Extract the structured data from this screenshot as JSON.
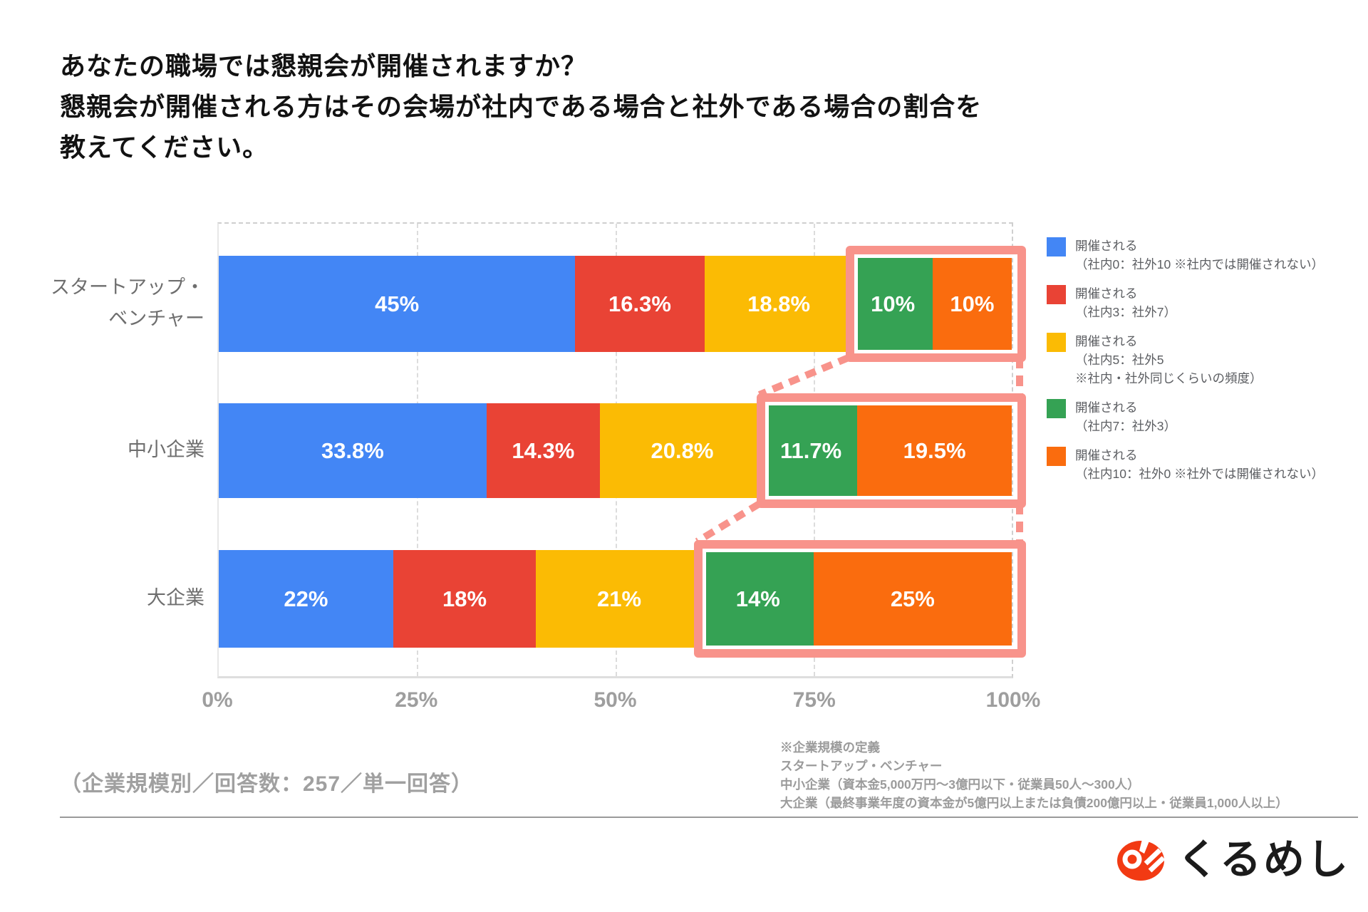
{
  "title": {
    "lines": [
      "あなたの職場では懇親会が開催されますか？",
      "懇親会が開催される方はその会場が社内である場合と社外である場合の割合を",
      "教えてください。"
    ]
  },
  "chart_data": {
    "type": "bar",
    "orientation": "horizontal_stacked",
    "categories": [
      "スタートアップ・ベンチャー",
      "中小企業",
      "大企業"
    ],
    "category_display_lines": [
      [
        "スタートアップ・",
        "ベンチャー"
      ],
      [
        "中小企業"
      ],
      [
        "大企業"
      ]
    ],
    "series": [
      {
        "name": "開催される（社内0：社外10 ※社内では開催されない）",
        "color": "#4386F5",
        "values": [
          45,
          33.8,
          22
        ],
        "labels": [
          "45%",
          "33.8%",
          "22%"
        ]
      },
      {
        "name": "開催される（社内3：社外7）",
        "color": "#E94335",
        "values": [
          16.3,
          14.3,
          18
        ],
        "labels": [
          "16.3%",
          "14.3%",
          "18%"
        ]
      },
      {
        "name": "開催される（社内5：社外5 ※社内・社外同じくらいの頻度）",
        "color": "#FBBB04",
        "values": [
          18.8,
          20.8,
          21
        ],
        "labels": [
          "18.8%",
          "20.8%",
          "21%"
        ]
      },
      {
        "name": "開催される（社内7：社外3）",
        "color": "#35A254",
        "values": [
          10,
          11.7,
          14
        ],
        "labels": [
          "10%",
          "11.7%",
          "14%"
        ]
      },
      {
        "name": "開催される（社内10：社外0 ※社外では開催されない）",
        "color": "#FA6C0E",
        "values": [
          10,
          19.5,
          25
        ],
        "labels": [
          "10%",
          "19.5%",
          "25%"
        ]
      }
    ],
    "x_ticks": [
      "0%",
      "25%",
      "50%",
      "75%",
      "100%"
    ],
    "xlim": [
      0,
      100
    ],
    "grid": "dashed_vertical_25_50_75_100",
    "legend_position": "right",
    "highlight": {
      "series_indices": [
        3,
        4
      ],
      "box_color": "#F8938B"
    }
  },
  "legend": {
    "items": [
      {
        "color": "#4386F5",
        "lines": [
          "開催される",
          "（社内0：社外10 ※社内では開催されない）"
        ]
      },
      {
        "color": "#E94335",
        "lines": [
          "開催される",
          "（社内3：社外7）"
        ]
      },
      {
        "color": "#FBBB04",
        "lines": [
          "開催される",
          "（社内5：社外5",
          "※社内・社外同じくらいの頻度）"
        ]
      },
      {
        "color": "#35A254",
        "lines": [
          "開催される",
          "（社内7：社外3）"
        ]
      },
      {
        "color": "#FA6C0E",
        "lines": [
          "開催される",
          "（社内10：社外0 ※社外では開催されない）"
        ]
      }
    ]
  },
  "footer": {
    "survey_note": "（企業規模別／回答数：257／単一回答）",
    "definition_lines": [
      "※企業規模の定義",
      "スタートアップ・ベンチャー",
      "中小企業（資本金5,000万円～3億円以下・従業員50人～300人）",
      "大企業（最終事業年度の資本金が5億円以上または負債200億円以上・従業員1,000人以上）"
    ]
  },
  "logo": {
    "text": "くるめし",
    "icon_color": "#F23A13"
  }
}
